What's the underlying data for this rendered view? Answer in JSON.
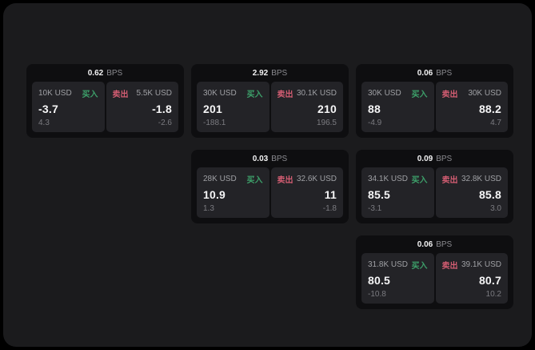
{
  "labels": {
    "bps_unit": "BPS",
    "buy": "买入",
    "sell": "卖出"
  },
  "colors": {
    "window_bg": "#1b1b1d",
    "card_bg": "#0e0e10",
    "panel_bg": "#232327",
    "buy_green": "#3da06a",
    "sell_red": "#d35d72"
  },
  "cards": [
    {
      "bps_value": "0.62",
      "buy": {
        "amount": "10K USD",
        "price": "-3.7",
        "delta": "4.3"
      },
      "sell": {
        "amount": "5.5K USD",
        "price": "-1.8",
        "delta": "-2.6"
      }
    },
    {
      "bps_value": "2.92",
      "buy": {
        "amount": "30K USD",
        "price": "201",
        "delta": "-188.1"
      },
      "sell": {
        "amount": "30.1K USD",
        "price": "210",
        "delta": "196.5"
      }
    },
    {
      "bps_value": "0.06",
      "buy": {
        "amount": "30K USD",
        "price": "88",
        "delta": "-4.9"
      },
      "sell": {
        "amount": "30K USD",
        "price": "88.2",
        "delta": "4.7"
      }
    },
    {
      "bps_value": "0.03",
      "buy": {
        "amount": "28K USD",
        "price": "10.9",
        "delta": "1.3"
      },
      "sell": {
        "amount": "32.6K USD",
        "price": "11",
        "delta": "-1.8"
      }
    },
    {
      "bps_value": "0.09",
      "buy": {
        "amount": "34.1K USD",
        "price": "85.5",
        "delta": "-3.1"
      },
      "sell": {
        "amount": "32.8K USD",
        "price": "85.8",
        "delta": "3.0"
      }
    },
    {
      "bps_value": "0.06",
      "buy": {
        "amount": "31.8K USD",
        "price": "80.5",
        "delta": "-10.8"
      },
      "sell": {
        "amount": "39.1K USD",
        "price": "80.7",
        "delta": "10.2"
      }
    }
  ]
}
